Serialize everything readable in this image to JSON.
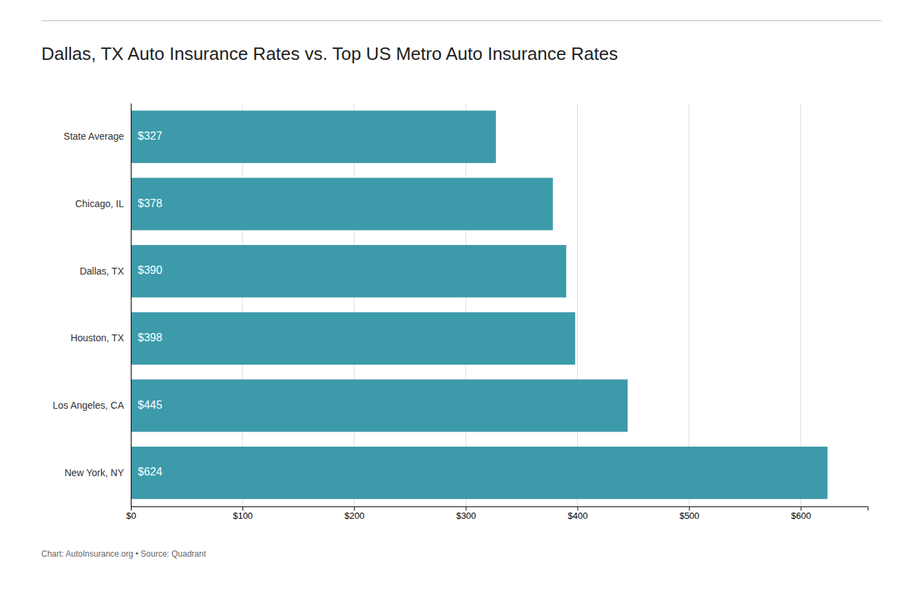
{
  "chart_data": {
    "type": "bar",
    "orientation": "horizontal",
    "title": "Dallas, TX Auto Insurance Rates vs. Top US Metro Auto Insurance Rates",
    "caption": "Chart: AutoInsurance.org • Source: Quadrant",
    "categories": [
      "State Average",
      "Chicago, IL",
      "Dallas, TX",
      "Houston, TX",
      "Los Angeles, CA",
      "New York, NY"
    ],
    "values": [
      327,
      378,
      390,
      398,
      445,
      624
    ],
    "value_labels": [
      "$327",
      "$378",
      "$390",
      "$398",
      "$445",
      "$624"
    ],
    "data_labels": true,
    "color": "#3d9aaa",
    "xlim": [
      0,
      660
    ],
    "xticks": [
      {
        "value": 0,
        "label": "$0"
      },
      {
        "value": 100,
        "label": "$100"
      },
      {
        "value": 200,
        "label": "$200"
      },
      {
        "value": 300,
        "label": "$300"
      },
      {
        "value": 400,
        "label": "$400"
      },
      {
        "value": 500,
        "label": "$500"
      },
      {
        "value": 600,
        "label": "$600"
      }
    ],
    "grid": true
  }
}
